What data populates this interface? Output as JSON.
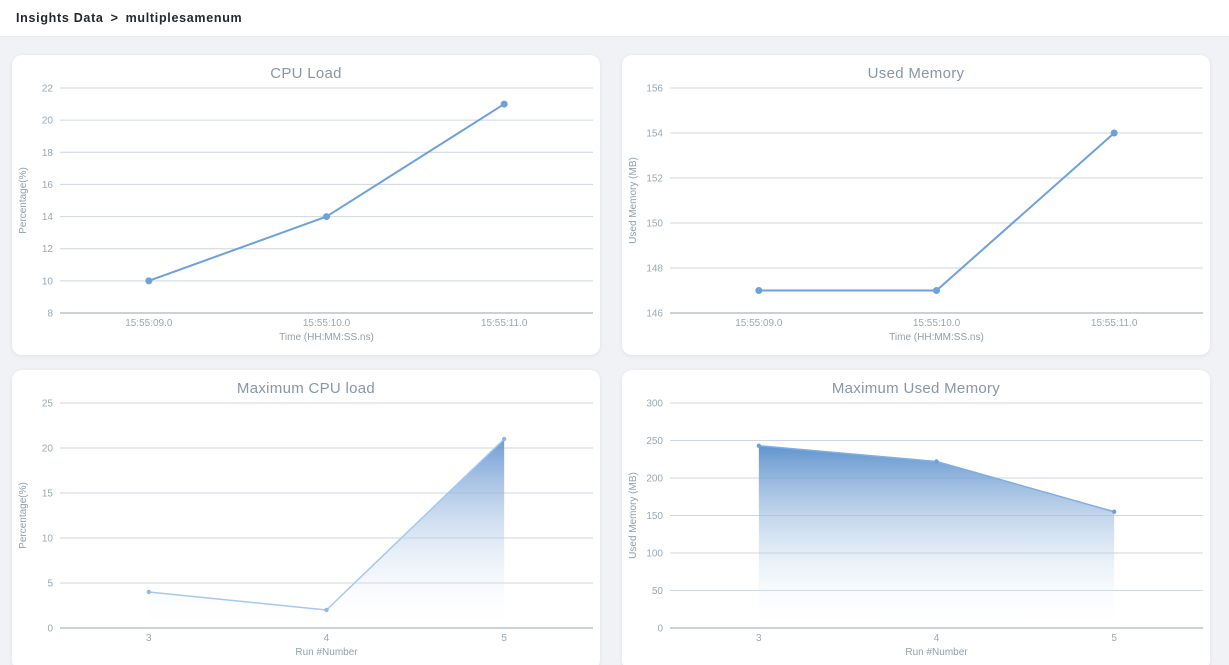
{
  "header": {
    "breadcrumb": {
      "root": "Insights Data",
      "separator": ">",
      "current": "multiplesamenum"
    }
  },
  "chart_data": [
    {
      "id": "cpu-load",
      "type": "line",
      "title": "CPU Load",
      "xlabel": "Time (HH:MM:SS.ns)",
      "ylabel": "Percentage(%)",
      "categories": [
        "15:55:09.0",
        "15:55:10.0",
        "15:55:11.0"
      ],
      "values": [
        10,
        14,
        21
      ],
      "yticks": [
        8,
        10,
        12,
        14,
        16,
        18,
        20,
        22
      ],
      "ylim": [
        8,
        22
      ],
      "grid": true,
      "legend": false,
      "colors": {
        "line": "#6ca1de",
        "marker": "#6ca1de"
      }
    },
    {
      "id": "used-memory",
      "type": "line",
      "title": "Used Memory",
      "xlabel": "Time (HH:MM:SS.ns)",
      "ylabel": "Used Memory (MB)",
      "categories": [
        "15:55:09.0",
        "15:55:10.0",
        "15:55:11.0"
      ],
      "values": [
        147,
        147,
        154
      ],
      "yticks": [
        146,
        148,
        150,
        152,
        154,
        156
      ],
      "ylim": [
        146,
        156
      ],
      "grid": true,
      "legend": false,
      "colors": {
        "line": "#6ca1de",
        "marker": "#6ca1de"
      }
    },
    {
      "id": "max-cpu-load",
      "type": "area",
      "title": "Maximum CPU load",
      "xlabel": "Run #Number",
      "ylabel": "Percentage(%)",
      "categories": [
        "3",
        "4",
        "5"
      ],
      "values": [
        4,
        2,
        21
      ],
      "yticks": [
        0,
        5,
        10,
        15,
        20,
        25
      ],
      "ylim": [
        0,
        25
      ],
      "grid": true,
      "legend": false,
      "colors": {
        "line": "#a5c8ef",
        "marker": "#8db8e8",
        "area_top": "rgba(100,148,208,0.92)",
        "area_bottom": "rgba(255,255,255,0.03)"
      }
    },
    {
      "id": "max-used-memory",
      "type": "area",
      "title": "Maximum Used Memory",
      "xlabel": "Run #Number",
      "ylabel": "Used Memory (MB)",
      "categories": [
        "3",
        "4",
        "5"
      ],
      "values": [
        243,
        222,
        155
      ],
      "yticks": [
        0,
        50,
        100,
        150,
        200,
        250,
        300
      ],
      "ylim": [
        0,
        300
      ],
      "grid": true,
      "legend": false,
      "colors": {
        "line": "#7fafe2",
        "marker": "#6ca1de",
        "area_top": "rgba(91,144,203,0.96)",
        "area_bottom": "rgba(255,255,255,0.03)"
      }
    }
  ]
}
